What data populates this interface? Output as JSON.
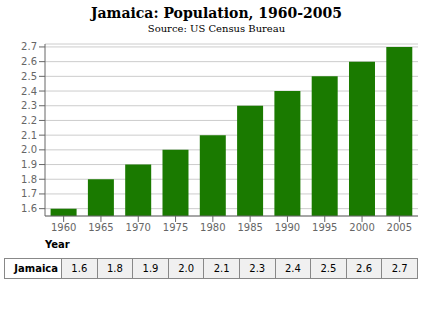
{
  "chart_data": {
    "type": "bar",
    "title": "Jamaica: Population, 1960-2005",
    "subtitle": "Source: US Census Bureau",
    "x_label": "Year",
    "categories": [
      "1960",
      "1965",
      "1970",
      "1975",
      "1980",
      "1985",
      "1990",
      "1995",
      "2000",
      "2005"
    ],
    "values": [
      1.6,
      1.8,
      1.9,
      2.0,
      2.1,
      2.3,
      2.4,
      2.5,
      2.6,
      2.7
    ],
    "color": "#1a7a00",
    "ylim": [
      1.55,
      2.72
    ],
    "yticks": [
      1.6,
      1.7,
      1.8,
      1.9,
      {
        "value": 2.0,
        "label": "2.0"
      },
      2.1,
      2.2,
      2.3,
      2.4,
      2.5,
      2.6,
      2.7
    ],
    "grid": true,
    "table_row_label": "Jamaica",
    "table_values": [
      "1.6",
      "1.8",
      "1.9",
      "2.0",
      "2.1",
      "2.3",
      "2.4",
      "2.5",
      "2.6",
      "2.7"
    ]
  }
}
